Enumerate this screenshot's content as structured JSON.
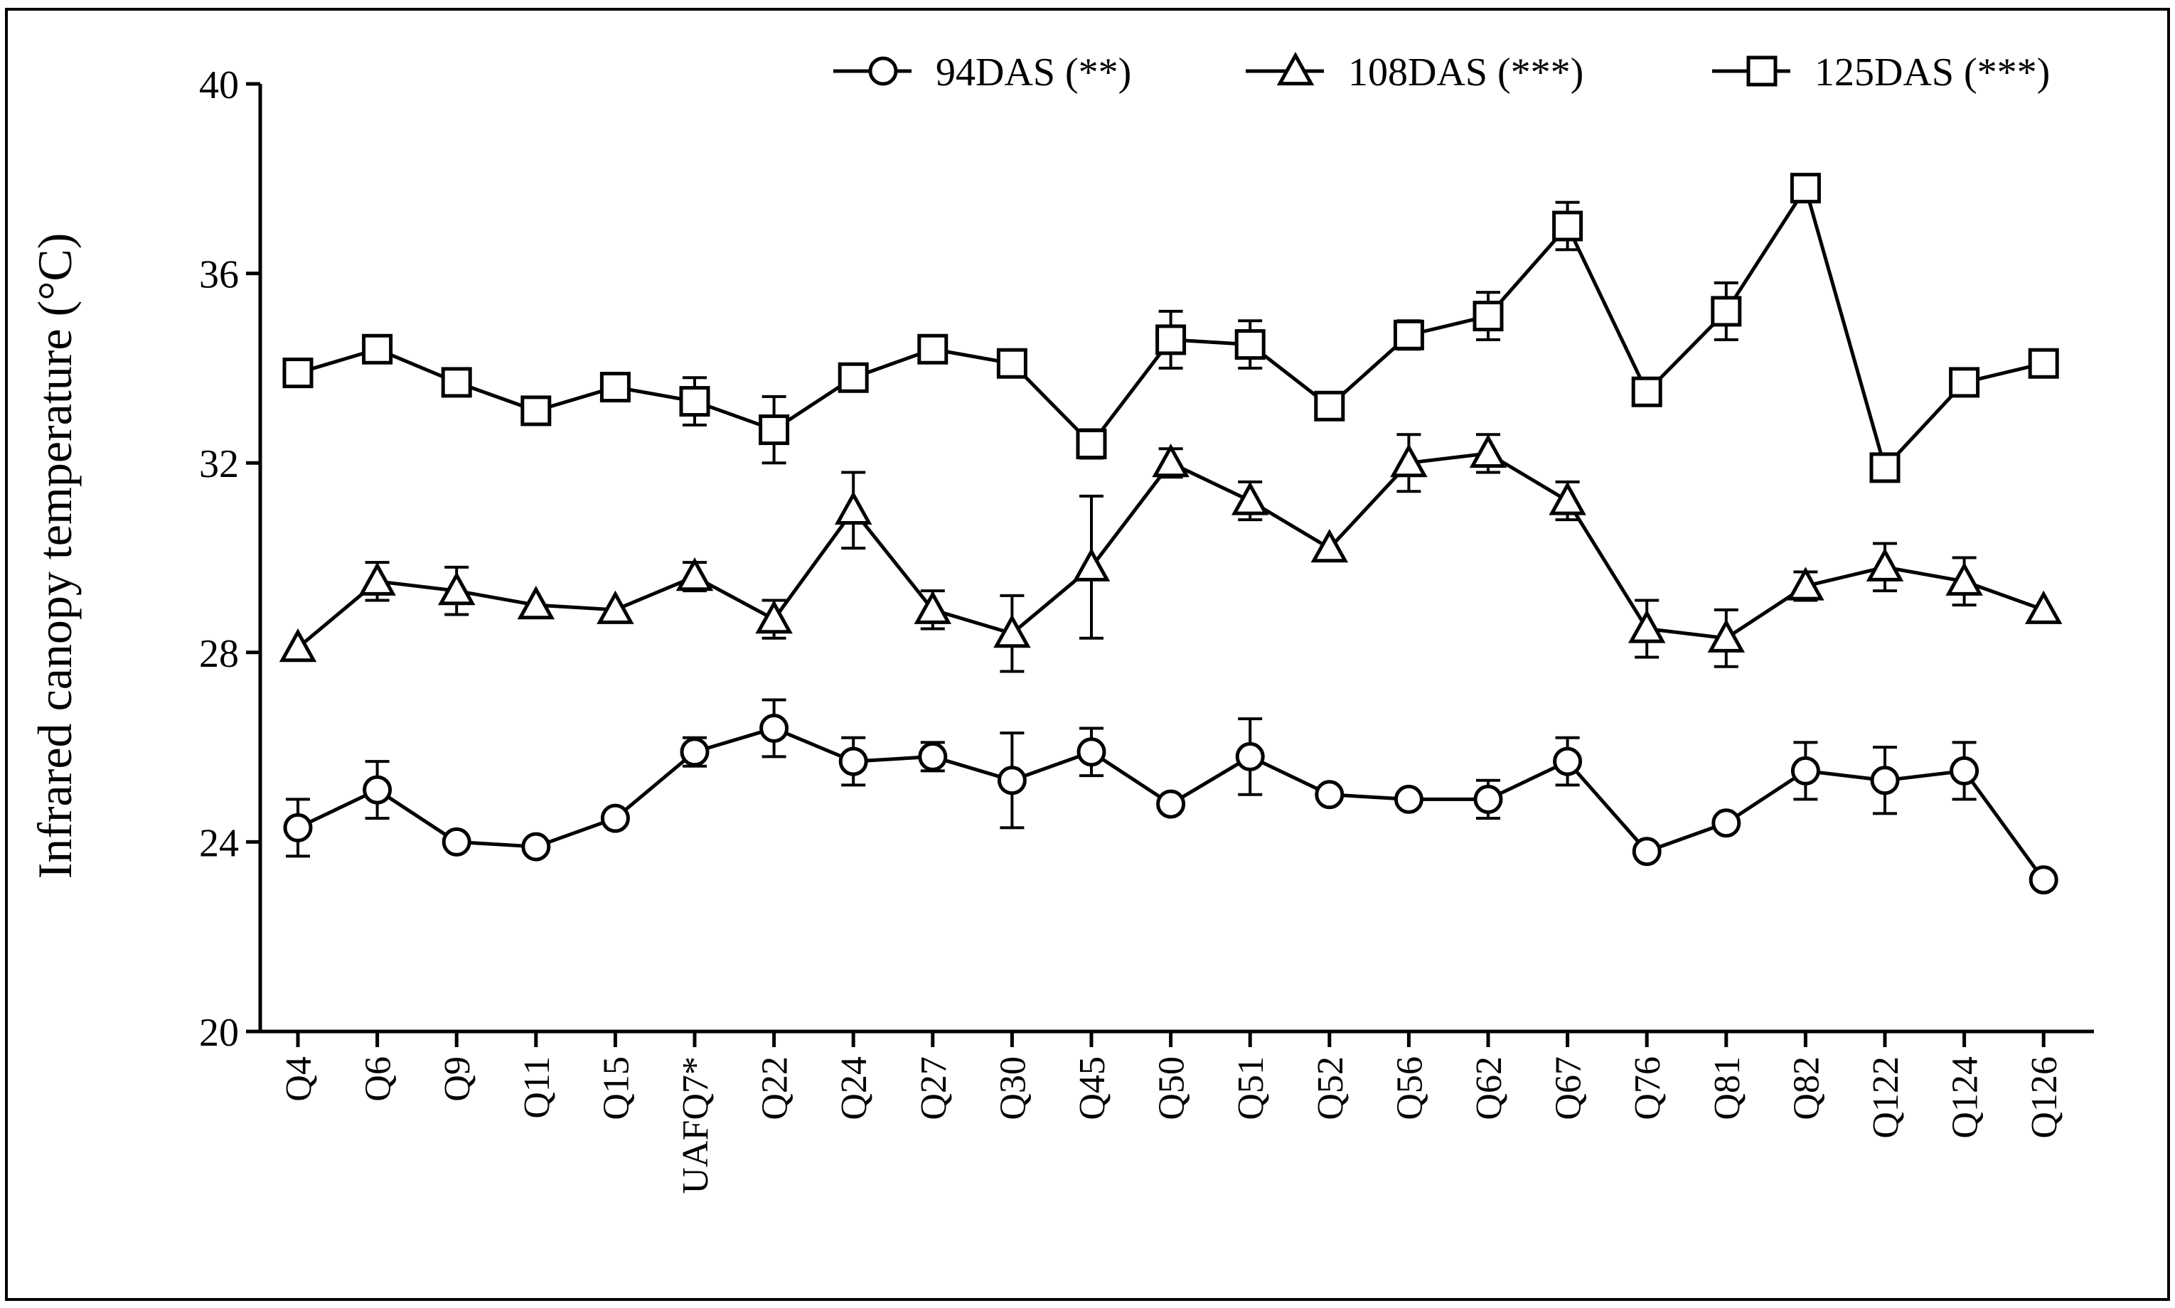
{
  "chart_data": {
    "type": "line",
    "title": "",
    "xlabel": "",
    "ylabel": "Infrared canopy temperature (°C)",
    "ylim": [
      20,
      40
    ],
    "yticks": [
      20,
      24,
      28,
      32,
      36,
      40
    ],
    "grid": false,
    "legend_position": "top-right",
    "categories": [
      "Q4",
      "Q6",
      "Q9",
      "Q11",
      "Q15",
      "UAFQ7*",
      "Q22",
      "Q24",
      "Q27",
      "Q30",
      "Q45",
      "Q50",
      "Q51",
      "Q52",
      "Q56",
      "Q62",
      "Q67",
      "Q76",
      "Q81",
      "Q82",
      "Q122",
      "Q124",
      "Q126"
    ],
    "series": [
      {
        "name": "94DAS (**)",
        "marker": "circle",
        "values": [
          24.3,
          25.1,
          24.0,
          23.9,
          24.5,
          25.9,
          26.4,
          25.7,
          25.8,
          25.3,
          25.9,
          24.8,
          25.8,
          25.0,
          24.9,
          24.9,
          25.7,
          23.8,
          24.4,
          25.5,
          25.3,
          25.5,
          23.2
        ],
        "errors": [
          0.6,
          0.6,
          0.0,
          0.0,
          0.0,
          0.3,
          0.6,
          0.5,
          0.3,
          1.0,
          0.5,
          0.0,
          0.8,
          0.0,
          0.0,
          0.4,
          0.5,
          0.0,
          0.0,
          0.6,
          0.7,
          0.6,
          0.0
        ]
      },
      {
        "name": "108DAS (***)",
        "marker": "triangle",
        "values": [
          28.1,
          29.5,
          29.3,
          29.0,
          28.9,
          29.6,
          28.7,
          31.0,
          28.9,
          28.4,
          29.8,
          32.0,
          31.2,
          30.2,
          32.0,
          32.2,
          31.2,
          28.5,
          28.3,
          29.4,
          29.8,
          29.5,
          28.9
        ],
        "errors": [
          0.0,
          0.4,
          0.5,
          0.0,
          0.0,
          0.3,
          0.4,
          0.8,
          0.4,
          0.8,
          1.5,
          0.3,
          0.4,
          0.0,
          0.6,
          0.4,
          0.4,
          0.6,
          0.6,
          0.3,
          0.5,
          0.5,
          0.0
        ]
      },
      {
        "name": "125DAS (***)",
        "marker": "square",
        "values": [
          33.9,
          34.4,
          33.7,
          33.1,
          33.6,
          33.3,
          32.7,
          33.8,
          34.4,
          34.1,
          32.4,
          34.6,
          34.5,
          33.2,
          34.7,
          35.1,
          37.0,
          33.5,
          35.2,
          37.8,
          31.9,
          33.7,
          34.1
        ],
        "errors": [
          0.0,
          0.0,
          0.0,
          0.0,
          0.0,
          0.5,
          0.7,
          0.0,
          0.0,
          0.0,
          0.3,
          0.6,
          0.5,
          0.0,
          0.3,
          0.5,
          0.5,
          0.0,
          0.6,
          0.0,
          0.0,
          0.0,
          0.0
        ]
      }
    ]
  }
}
